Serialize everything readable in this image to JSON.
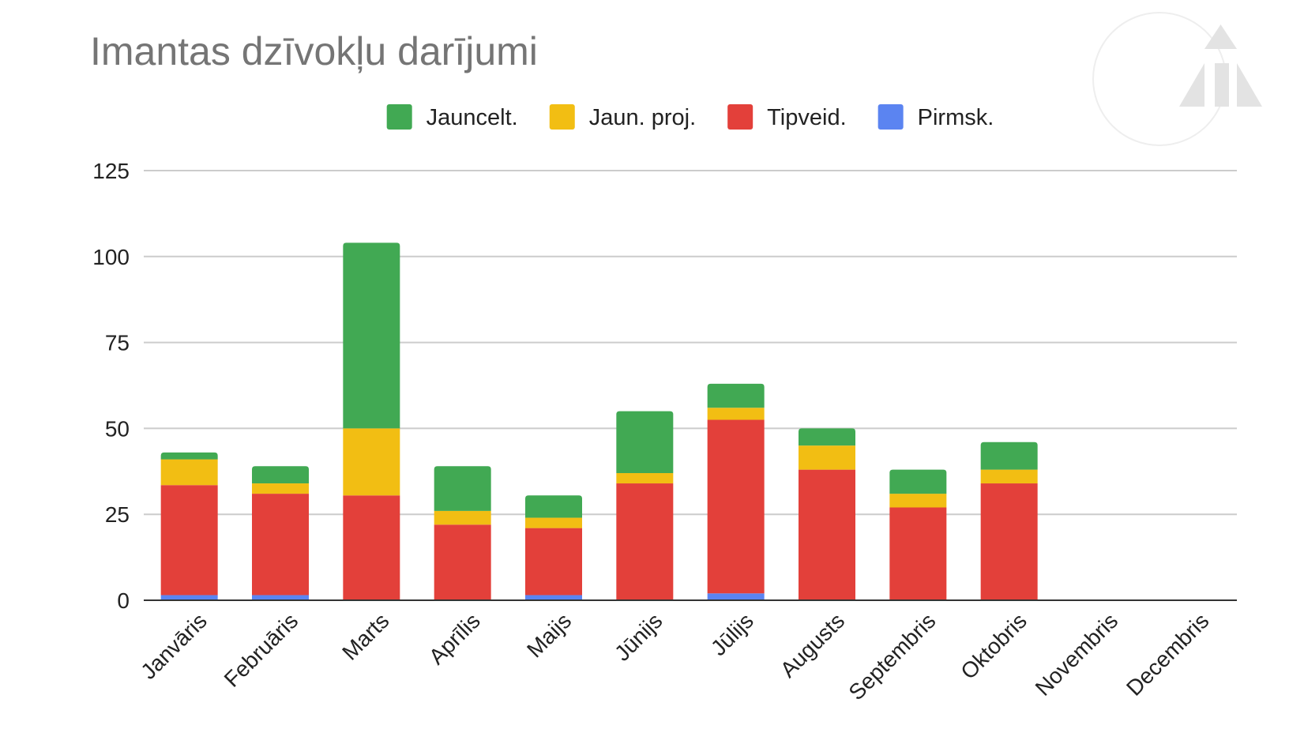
{
  "chart_data": {
    "type": "bar",
    "stacked": true,
    "title": "Imantas dzīvokļu darījumi",
    "xlabel": "",
    "ylabel": "",
    "categories": [
      "Janvāris",
      "Februāris",
      "Marts",
      "Aprīlis",
      "Maijs",
      "Jūnijs",
      "Jūlijs",
      "Augusts",
      "Septembris",
      "Oktobris",
      "Novembris",
      "Decembris"
    ],
    "series": [
      {
        "name": "Pirmsk.",
        "color": "#5b84f1",
        "values": [
          1.5,
          1.5,
          0,
          0,
          1.5,
          0,
          2,
          0,
          0,
          0,
          0,
          0
        ]
      },
      {
        "name": "Tipveid.",
        "color": "#e3403a",
        "values": [
          32,
          29.5,
          30.5,
          22,
          19.5,
          34,
          50.5,
          38,
          27,
          34,
          0,
          0
        ]
      },
      {
        "name": "Jaun. proj.",
        "color": "#f2be13",
        "values": [
          7.5,
          3,
          19.5,
          4,
          3,
          3,
          3.5,
          7,
          4,
          4,
          0,
          0
        ]
      },
      {
        "name": "Jauncelt.",
        "color": "#41a953",
        "values": [
          2,
          5,
          54,
          13,
          6.5,
          18,
          7,
          5,
          7,
          8,
          0,
          0
        ]
      }
    ],
    "legend_order": [
      "Jauncelt.",
      "Jaun. proj.",
      "Tipveid.",
      "Pirmsk."
    ],
    "ylim": [
      0,
      125
    ],
    "yticks": [
      0,
      25,
      50,
      75,
      100,
      125
    ],
    "grid": true,
    "legend_position": "top"
  }
}
